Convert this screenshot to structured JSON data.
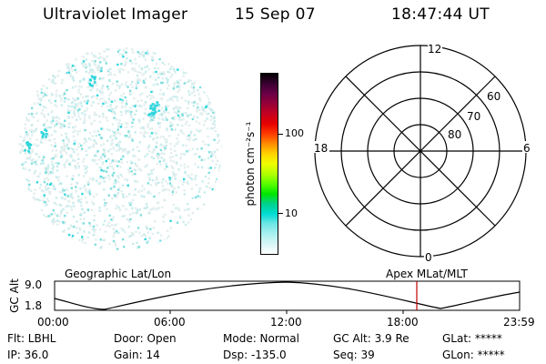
{
  "header": {
    "instrument": "Ultraviolet Imager",
    "date": "15 Sep 07",
    "time": "18:47:44 UT"
  },
  "colorbar": {
    "unit_label": "photon cm⁻²s⁻¹",
    "ticks": [
      "100",
      "10"
    ],
    "colors": [
      "#000000",
      "#3a0032",
      "#6a0046",
      "#960038",
      "#c40020",
      "#e60000",
      "#ff3a00",
      "#ff8c00",
      "#ffd200",
      "#f0ff00",
      "#b4ff00",
      "#5aff00",
      "#00e600",
      "#00d28c",
      "#00dcd2",
      "#6ee6e6",
      "#aaf0f0",
      "#d8f6f6",
      "#ffffff"
    ]
  },
  "polar_grid": {
    "mlt_labels": [
      "12",
      "18",
      "6",
      "0"
    ],
    "lat_labels": [
      "60",
      "70",
      "80"
    ]
  },
  "timeline": {
    "left_label": "Geographic Lat/Lon",
    "right_label": "Apex MLat/MLT",
    "y_axis_title": "GC Alt",
    "y_ticks": [
      "9.0",
      "1.8"
    ],
    "x_ticks": [
      "00:00",
      "06:00",
      "12:00",
      "18:00",
      "23:59"
    ],
    "marker_color": "#c00000"
  },
  "footer": {
    "row1": [
      "Flt: LBHL",
      "Door: Open",
      "Mode: Normal",
      "GC Alt: 3.9 Re",
      "GLat: *****"
    ],
    "row2": [
      "IP: 36.0",
      "Gain: 14",
      "Dsp: -135.0",
      "Seq: 39",
      "GLon: *****"
    ]
  },
  "colors": {
    "cyan_light": "#c8ecec",
    "cyan_mid": "#7fdede",
    "cyan_bright": "#30d6dc"
  }
}
